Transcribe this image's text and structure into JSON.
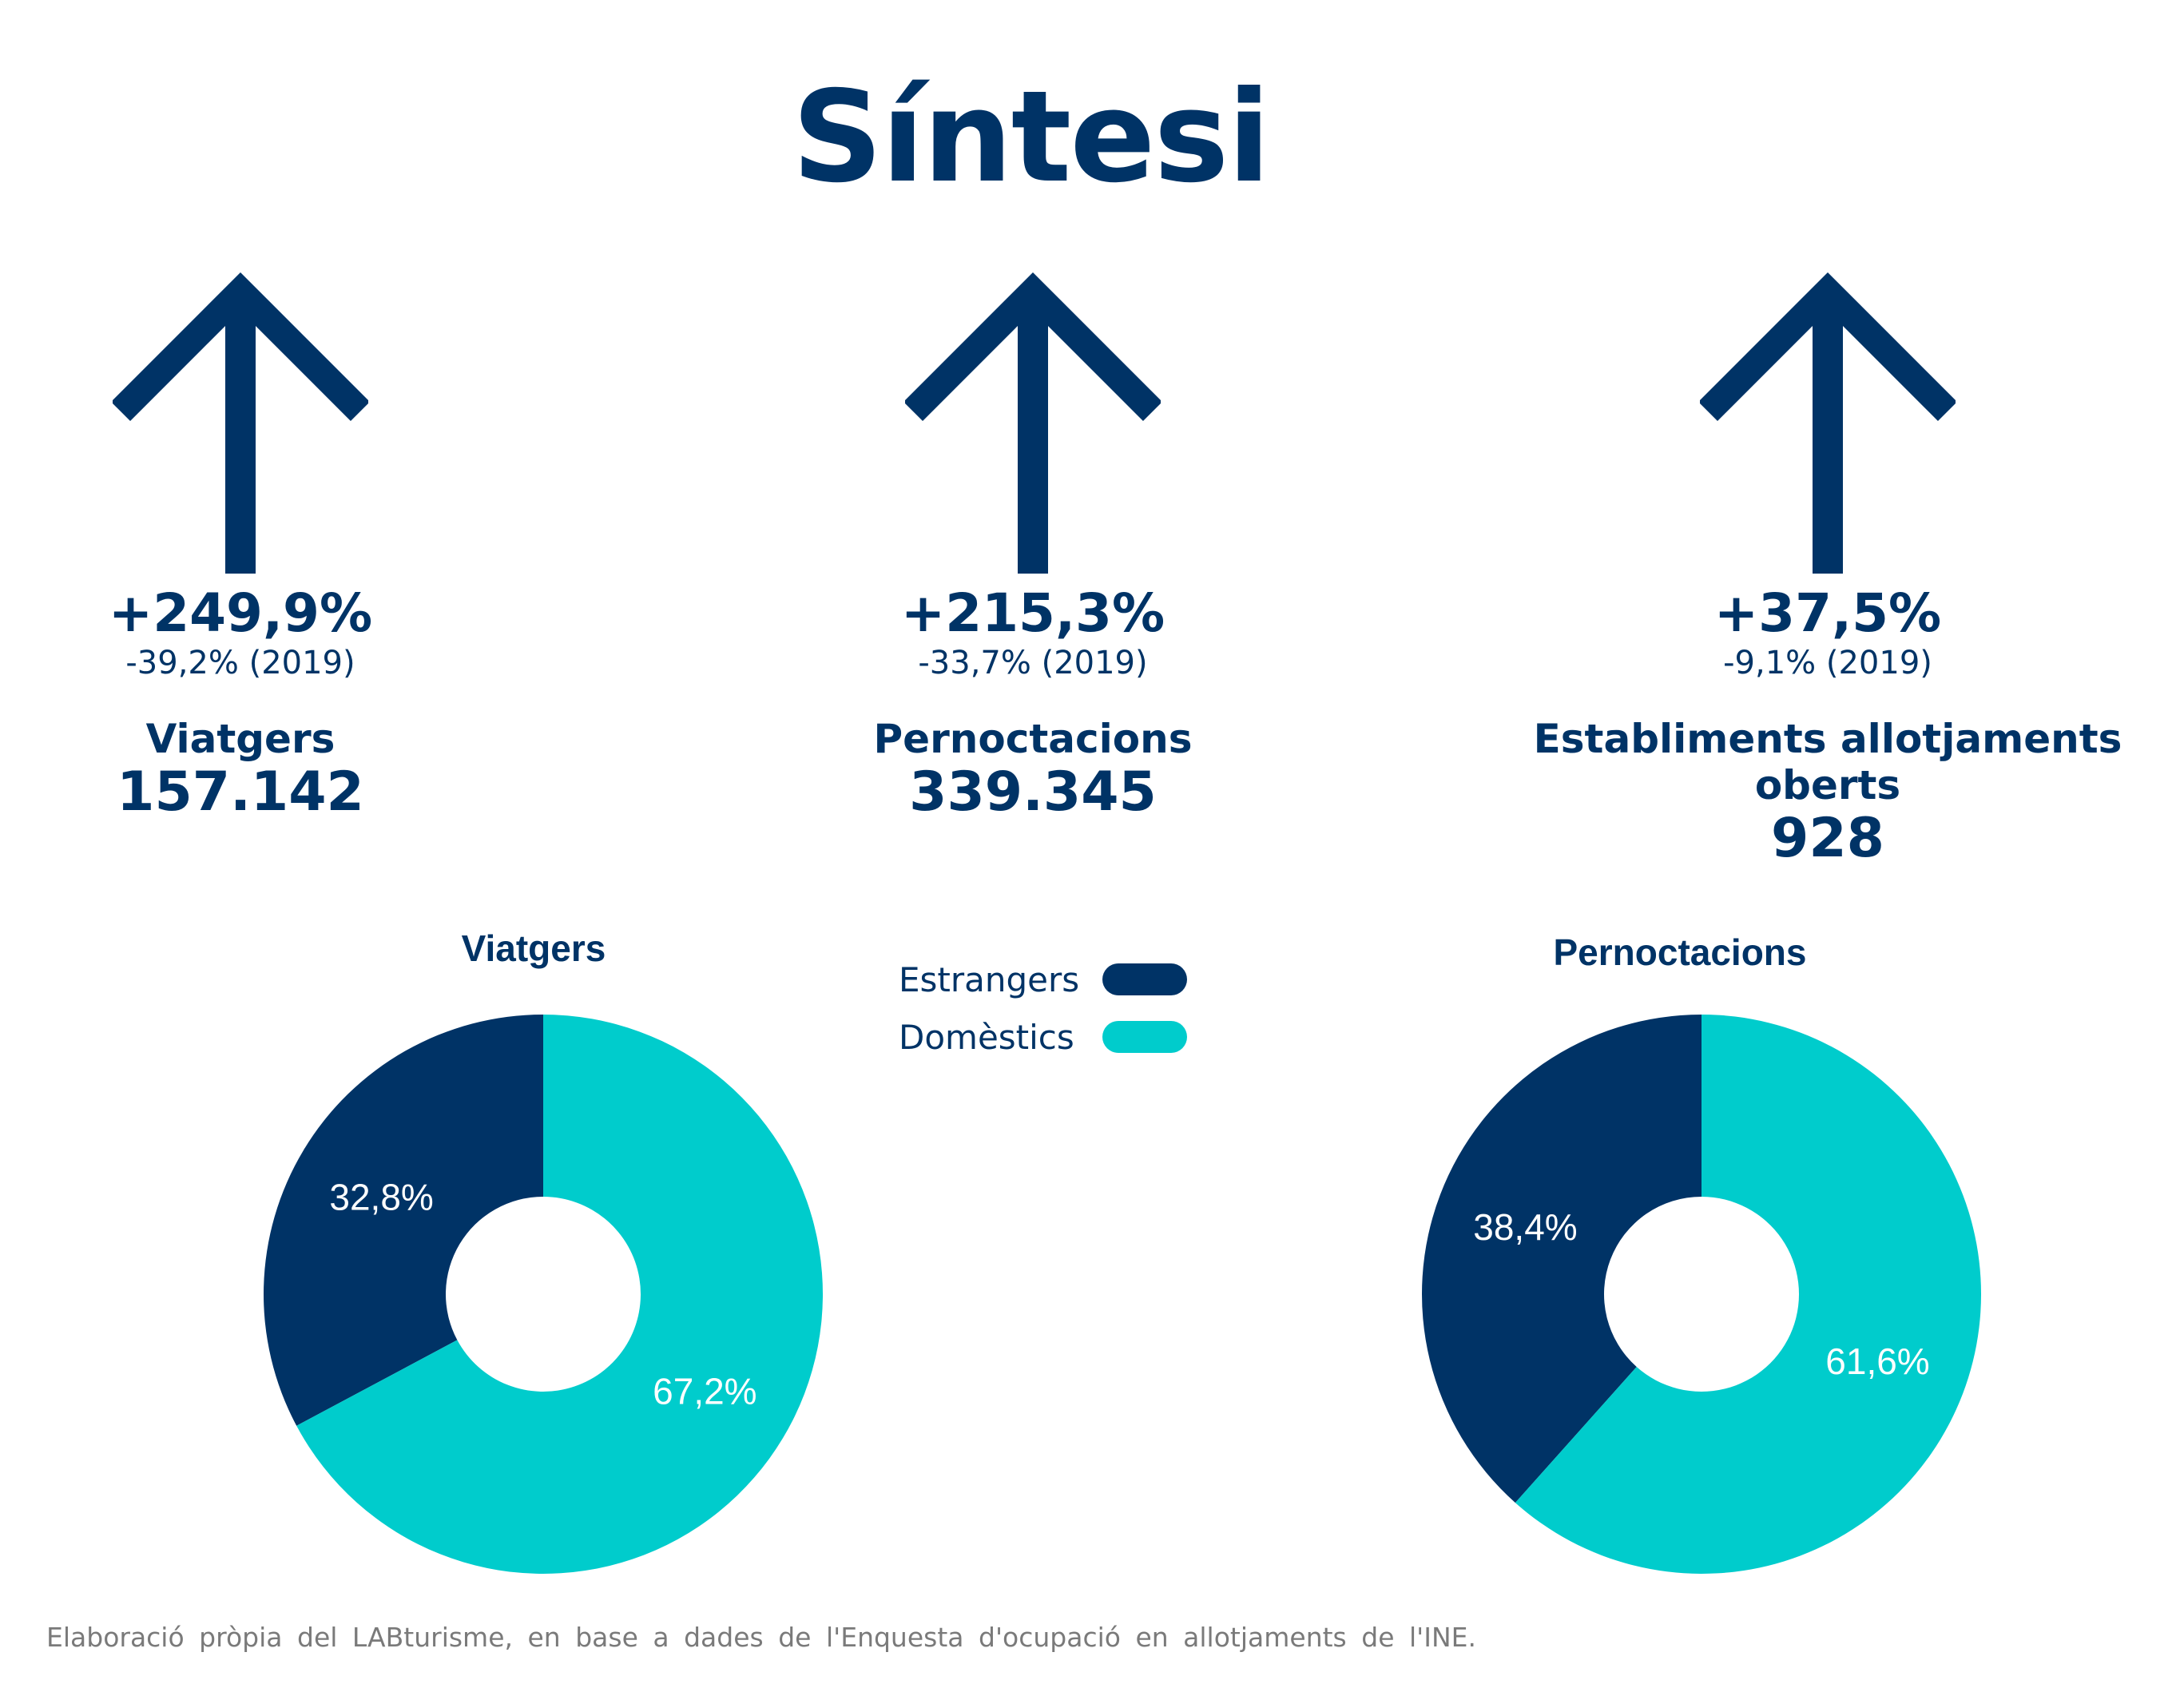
{
  "title": "Síntesi",
  "colors": {
    "navy": "#003366",
    "teal": "#00cccc",
    "source_gray": "#7a7a7a"
  },
  "kpis": [
    {
      "icon": "arrow-up-icon",
      "change": "+249,9%",
      "change_2019": "-39,2% (2019)",
      "label": "Viatgers",
      "value": "157.142"
    },
    {
      "icon": "arrow-up-icon",
      "change": "+215,3%",
      "change_2019": "-33,7% (2019)",
      "label": "Pernoctacions",
      "value": "339.345"
    },
    {
      "icon": "arrow-up-icon",
      "change": "+37,5%",
      "change_2019": "-9,1% (2019)",
      "label": "Establiments allotjaments oberts",
      "value": "928"
    }
  ],
  "legend": [
    {
      "label": "Estrangers",
      "color": "#003366"
    },
    {
      "label": "Domèstics",
      "color": "#00cccc"
    }
  ],
  "chart_data": [
    {
      "type": "pie",
      "title": "Viatgers",
      "categories": [
        "Estrangers",
        "Domèstics"
      ],
      "values": [
        32.8,
        67.2
      ],
      "labels": [
        "32,8%",
        "67,2%"
      ],
      "colors": [
        "#003366",
        "#00cccc"
      ],
      "legend": "top-center"
    },
    {
      "type": "pie",
      "title": "Pernoctacions",
      "categories": [
        "Estrangers",
        "Domèstics"
      ],
      "values": [
        38.4,
        61.6
      ],
      "labels": [
        "38,4%",
        "61,6%"
      ],
      "colors": [
        "#003366",
        "#00cccc"
      ],
      "legend": "top-center"
    }
  ],
  "source": "Elaboració pròpia del LABturisme, en base a dades de l'Enquesta d'ocupació en allotjaments de l'INE."
}
